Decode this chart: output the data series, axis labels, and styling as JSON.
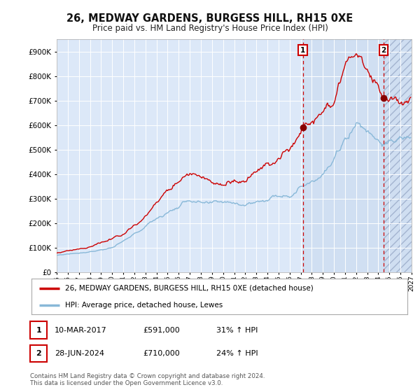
{
  "title": "26, MEDWAY GARDENS, BURGESS HILL, RH15 0XE",
  "subtitle": "Price paid vs. HM Land Registry's House Price Index (HPI)",
  "year_start": 1995,
  "year_end": 2027,
  "ylim": [
    0,
    950000
  ],
  "yticks": [
    0,
    100000,
    200000,
    300000,
    400000,
    500000,
    600000,
    700000,
    800000,
    900000
  ],
  "sale1_date": 2017.19,
  "sale1_price": 591000,
  "sale1_label": "1",
  "sale2_date": 2024.49,
  "sale2_price": 710000,
  "sale2_label": "2",
  "legend_line1": "26, MEDWAY GARDENS, BURGESS HILL, RH15 0XE (detached house)",
  "legend_line2": "HPI: Average price, detached house, Lewes",
  "table_row1": [
    "1",
    "10-MAR-2017",
    "£591,000",
    "31% ↑ HPI"
  ],
  "table_row2": [
    "2",
    "28-JUN-2024",
    "£710,000",
    "24% ↑ HPI"
  ],
  "footnote1": "Contains HM Land Registry data © Crown copyright and database right 2024.",
  "footnote2": "This data is licensed under the Open Government Licence v3.0.",
  "fig_bg": "#ffffff",
  "plot_bg": "#dce8f8",
  "span_bg": "#ccdcf0",
  "line_red": "#cc0000",
  "line_blue": "#88b8d8",
  "grid_color": "#ffffff",
  "hatch_edge": "#99aac8"
}
